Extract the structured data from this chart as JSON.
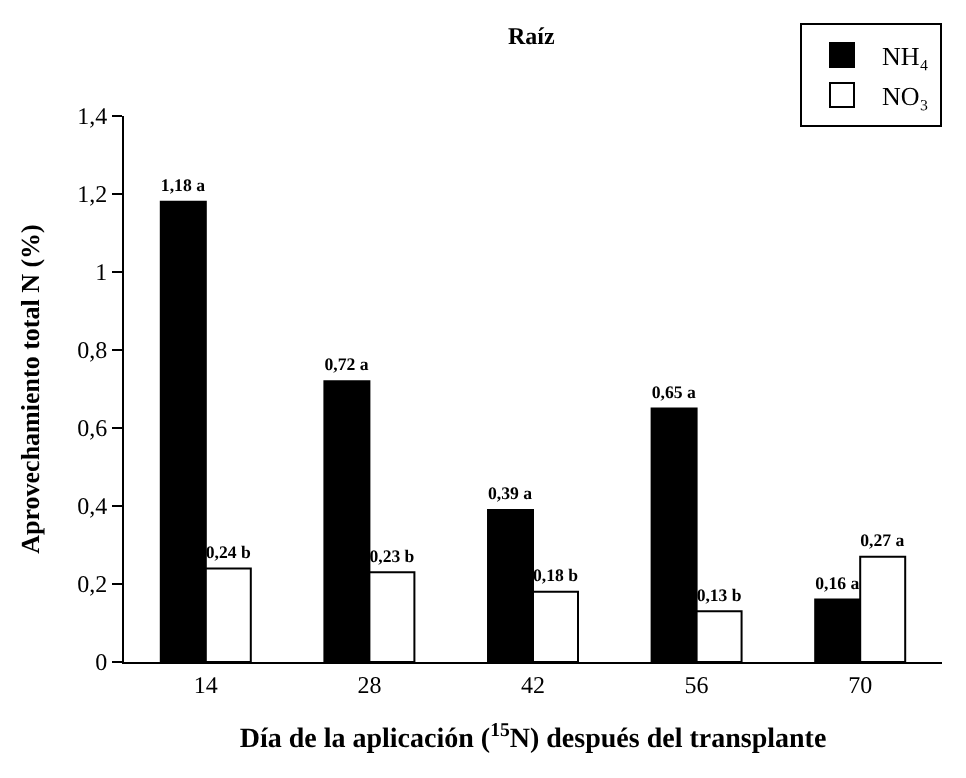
{
  "chart_data": {
    "type": "bar",
    "title": "Raíz",
    "xlabel": "Día de la aplicación ($^{15}$N) después del transplante",
    "ylabel": "Aprovechamiento total N (%)",
    "categories": [
      "14",
      "28",
      "42",
      "56",
      "70"
    ],
    "series": [
      {
        "name": "NH₄",
        "color": "#000000",
        "values": [
          1.18,
          0.72,
          0.39,
          0.65,
          0.16
        ],
        "value_labels": [
          "1,18 a",
          "0,72 a",
          "0,39 a",
          "0,65 a",
          "0,16 a"
        ]
      },
      {
        "name": "NO₃",
        "color": "#ffffff",
        "values": [
          0.24,
          0.23,
          0.18,
          0.13,
          0.27
        ],
        "value_labels": [
          "0,24 b",
          "0,23 b",
          "0,18 b",
          "0,13 b",
          "0,27 a"
        ]
      }
    ],
    "ylim": [
      0,
      1.4
    ],
    "yticks": [
      0,
      {
        "value": 0.2,
        "label": "0,2"
      },
      {
        "value": 0.4,
        "label": "0,4"
      },
      {
        "value": 0.6,
        "label": "0,6"
      },
      {
        "value": 0.8,
        "label": "0,8"
      },
      1,
      {
        "value": 1.2,
        "label": "1,2"
      },
      {
        "value": 1.4,
        "label": "1,4"
      }
    ],
    "legend": "top right"
  }
}
